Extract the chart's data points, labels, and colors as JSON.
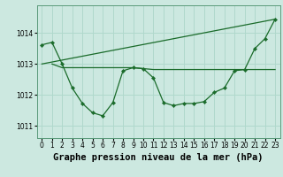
{
  "bg_color": "#cce8e0",
  "grid_color": "#b0d8cc",
  "line_color": "#1a6b2a",
  "title": "Graphe pression niveau de la mer (hPa)",
  "ylim": [
    1010.6,
    1014.9
  ],
  "xlim": [
    -0.5,
    23.5
  ],
  "yticks": [
    1011,
    1012,
    1013,
    1014
  ],
  "xticks": [
    0,
    1,
    2,
    3,
    4,
    5,
    6,
    7,
    8,
    9,
    10,
    11,
    12,
    13,
    14,
    15,
    16,
    17,
    18,
    19,
    20,
    21,
    22,
    23
  ],
  "line1": [
    1013.62,
    1013.7,
    1013.0,
    1012.22,
    1011.72,
    1011.42,
    1011.32,
    1011.75,
    1012.78,
    1012.88,
    1012.85,
    1012.55,
    1011.75,
    1011.65,
    1011.72,
    1011.72,
    1011.78,
    1012.08,
    1012.22,
    1012.78,
    1012.82,
    1013.5,
    1013.82,
    1014.45
  ],
  "line2_x": [
    0,
    23
  ],
  "line2_y": [
    1013.0,
    1014.45
  ],
  "line3_x": [
    1,
    2,
    3,
    4,
    5,
    6,
    7,
    8,
    9,
    10,
    11,
    12,
    13,
    14,
    15,
    16,
    17,
    18,
    19,
    20,
    21,
    22,
    23
  ],
  "line3_y": [
    1013.0,
    1012.88,
    1012.88,
    1012.88,
    1012.88,
    1012.88,
    1012.88,
    1012.88,
    1012.88,
    1012.85,
    1012.82,
    1012.82,
    1012.82,
    1012.82,
    1012.82,
    1012.82,
    1012.82,
    1012.82,
    1012.82,
    1012.82,
    1012.82,
    1012.82,
    1012.82
  ],
  "tick_fontsize": 5.5,
  "title_fontsize": 7.5
}
